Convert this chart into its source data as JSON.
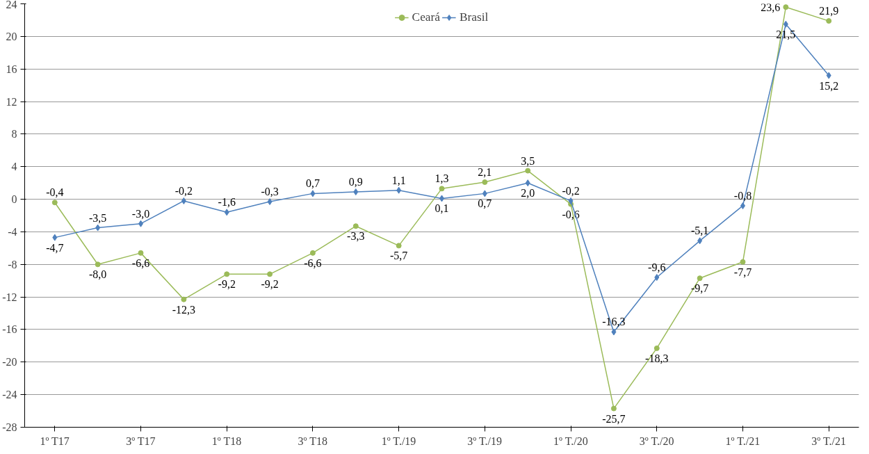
{
  "chart_data": {
    "type": "line",
    "categories": [
      "1º T17",
      null,
      "3º T17",
      null,
      "1º T18",
      null,
      "3º T18",
      null,
      "1º T./19",
      null,
      "3º T./19",
      null,
      "1º T./20",
      null,
      "3º T./20",
      null,
      "1º T./21",
      null,
      "3º T./21"
    ],
    "series": [
      {
        "name": "Ceará",
        "color": "#9bbb59",
        "marker": "circle",
        "values": [
          -0.4,
          -8.0,
          -6.6,
          -12.3,
          -9.2,
          -9.2,
          -6.6,
          -3.3,
          -5.7,
          1.3,
          2.1,
          3.5,
          -0.6,
          -25.7,
          -18.3,
          -9.7,
          -7.7,
          23.6,
          21.9
        ],
        "value_labels": [
          "-0,4",
          "-8,0",
          "-6,6",
          "-12,3",
          "-9,2",
          "-9,2",
          "-6,6",
          "-3,3",
          "-5,7",
          "1,3",
          "2,1",
          "3,5",
          "-0,6",
          "-25,7",
          "-18,3",
          "-9,7",
          "-7,7",
          "23,6",
          "21,9"
        ]
      },
      {
        "name": "Brasil",
        "color": "#4f81bd",
        "marker": "diamond",
        "values": [
          -4.7,
          -3.5,
          -3.0,
          -0.2,
          -1.6,
          -0.3,
          0.7,
          0.9,
          1.1,
          0.1,
          0.7,
          2.0,
          -0.2,
          -16.3,
          -9.6,
          -5.1,
          -0.8,
          21.5,
          15.2
        ],
        "value_labels": [
          "-4,7",
          "-3,5",
          "-3,0",
          "-0,2",
          "-1,6",
          "-0,3",
          "0,7",
          "0,9",
          "1,1",
          "0,1",
          "0,7",
          "2,0",
          "-0,2",
          "-16,3",
          "-9,6",
          "-5,1",
          "-0,8",
          "21,5",
          "15,2"
        ]
      }
    ],
    "ylim": [
      -28,
      24
    ],
    "yticks": [
      -28,
      -24,
      -20,
      -16,
      -12,
      -8,
      -4,
      0,
      4,
      8,
      12,
      16,
      20,
      24
    ],
    "grid": "y",
    "legend": "top",
    "line_style": "solid"
  }
}
